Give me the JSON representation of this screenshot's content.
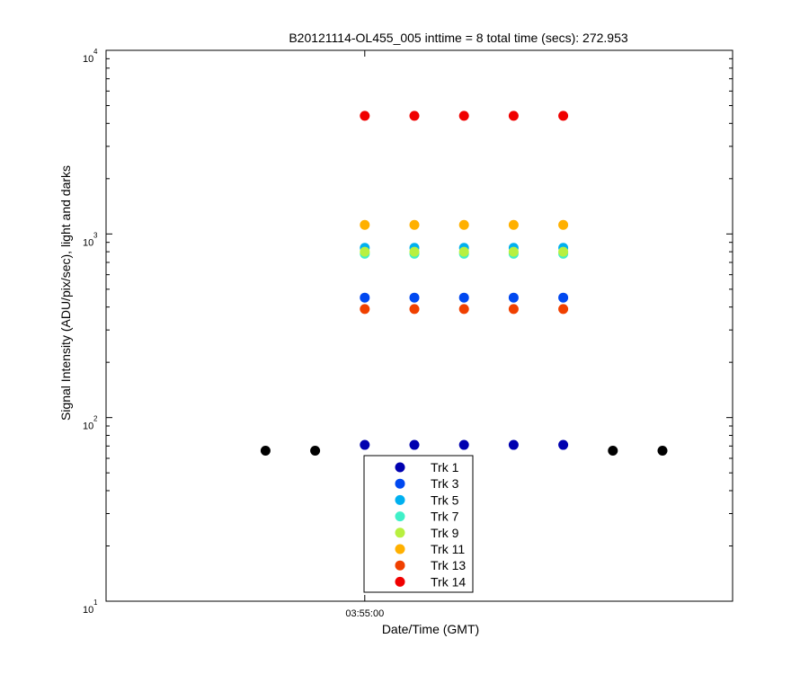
{
  "chart_data": {
    "type": "scatter",
    "title": "B20121114-OL455_005 inttime = 8 total time (secs): 272.953",
    "xlabel": "Date/Time (GMT)",
    "ylabel": "Signal Intensity (ADU/pix/sec), light and darks",
    "y_scale": "log",
    "ylim": [
      10,
      10000
    ],
    "xlim": [
      "03:54:00",
      "03:56:30"
    ],
    "x_ticks": [
      "03:55:00"
    ],
    "y_tick_labels": [
      {
        "base": "10",
        "exp": "1"
      },
      {
        "base": "10",
        "exp": "2"
      },
      {
        "base": "10",
        "exp": "3"
      },
      {
        "base": "10",
        "exp": "4"
      }
    ],
    "grid": false,
    "legend_position": "bottom-center",
    "x": [
      "03:54:30",
      "03:54:45",
      "03:55:00",
      "03:55:15",
      "03:55:30",
      "03:55:45",
      "03:56:00",
      "03:56:15",
      "03:56:30"
    ],
    "dark_series": {
      "color": "#000000",
      "points": [
        {
          "x": "03:54:30",
          "y": 66
        },
        {
          "x": "03:54:45",
          "y": 66
        },
        {
          "x": "03:56:15",
          "y": 66
        },
        {
          "x": "03:56:30",
          "y": 66
        }
      ]
    },
    "series": [
      {
        "name": "Trk 1",
        "color": "#0000b0",
        "x": [
          "03:55:00",
          "03:55:15",
          "03:55:30",
          "03:55:45",
          "03:56:00"
        ],
        "values": [
          71,
          71,
          71,
          71,
          71
        ]
      },
      {
        "name": "Trk 3",
        "color": "#0048f0",
        "x": [
          "03:55:00",
          "03:55:15",
          "03:55:30",
          "03:55:45",
          "03:56:00"
        ],
        "values": [
          450,
          450,
          450,
          450,
          450
        ]
      },
      {
        "name": "Trk 5",
        "color": "#00b0f0",
        "x": [
          "03:55:00",
          "03:55:15",
          "03:55:30",
          "03:55:45",
          "03:56:00"
        ],
        "values": [
          840,
          840,
          840,
          840,
          840
        ]
      },
      {
        "name": "Trk 7",
        "color": "#40f0c8",
        "x": [
          "03:55:00",
          "03:55:15",
          "03:55:30",
          "03:55:45",
          "03:56:00"
        ],
        "values": [
          780,
          780,
          780,
          780,
          780
        ]
      },
      {
        "name": "Trk 9",
        "color": "#b8f040",
        "x": [
          "03:55:00",
          "03:55:15",
          "03:55:30",
          "03:55:45",
          "03:56:00"
        ],
        "values": [
          800,
          800,
          800,
          800,
          800
        ]
      },
      {
        "name": "Trk 11",
        "color": "#ffb000",
        "x": [
          "03:55:00",
          "03:55:15",
          "03:55:30",
          "03:55:45",
          "03:56:00"
        ],
        "values": [
          1120,
          1120,
          1120,
          1120,
          1120
        ]
      },
      {
        "name": "Trk 13",
        "color": "#f04000",
        "x": [
          "03:55:00",
          "03:55:15",
          "03:55:30",
          "03:55:45",
          "03:56:00"
        ],
        "values": [
          390,
          390,
          390,
          390,
          390
        ]
      },
      {
        "name": "Trk 14",
        "color": "#f00000",
        "x": [
          "03:55:00",
          "03:55:15",
          "03:55:30",
          "03:55:45",
          "03:56:00"
        ],
        "values": [
          4400,
          4400,
          4400,
          4400,
          4400
        ]
      }
    ]
  }
}
